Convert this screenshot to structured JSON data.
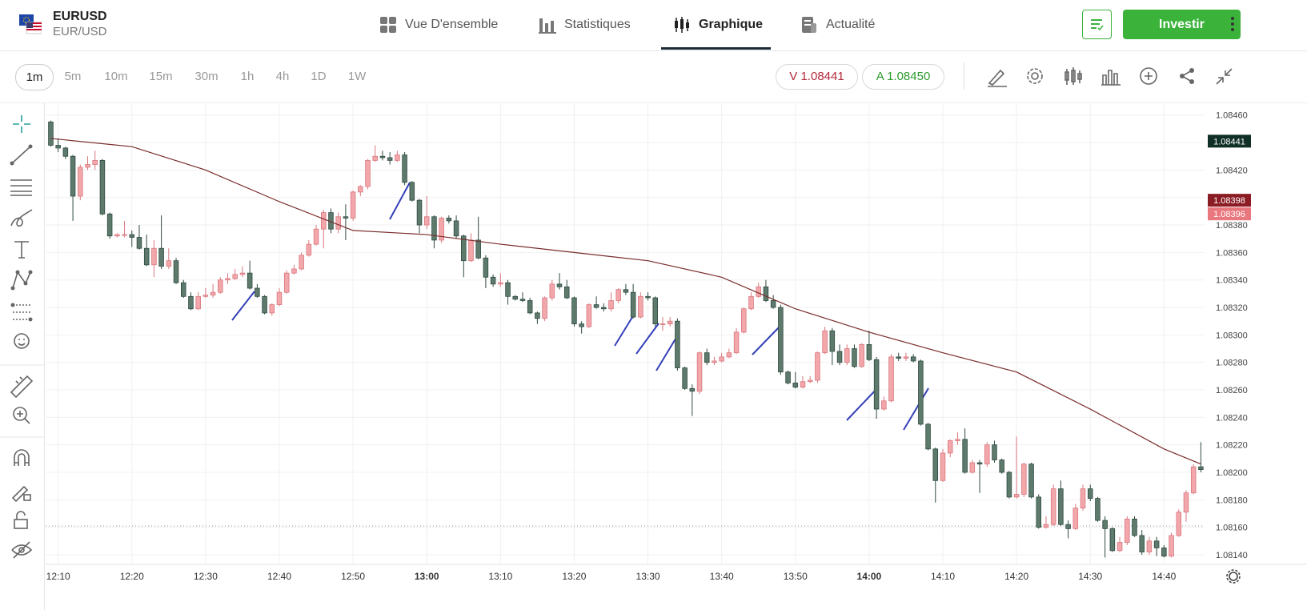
{
  "header": {
    "symbol": "EURUSD",
    "pair": "EUR/USD",
    "tabs": [
      "Vue D'ensemble",
      "Statistiques",
      "Graphique",
      "Actualité"
    ],
    "invest": "Investir"
  },
  "toolbar": {
    "timeframes": [
      "1m",
      "5m",
      "10m",
      "15m",
      "30m",
      "1h",
      "4h",
      "1D",
      "1W"
    ],
    "quotes": [
      {
        "side": "V",
        "price": "1.08441"
      },
      {
        "side": "A",
        "price": "1.08450"
      }
    ]
  },
  "chart_data": {
    "type": "candlestick",
    "x": [
      729,
      730,
      731,
      732,
      733,
      734,
      735,
      736,
      737,
      738,
      739,
      740,
      741,
      742,
      743,
      744,
      745,
      746,
      747,
      748,
      749,
      750,
      751,
      752,
      753,
      754,
      755,
      756,
      757,
      758,
      759,
      760,
      761,
      762,
      763,
      764,
      765,
      766,
      767,
      768,
      769,
      770,
      771,
      772,
      773,
      774,
      775,
      776,
      777,
      778,
      779,
      780,
      781,
      782,
      783,
      784,
      785,
      786,
      787,
      788,
      789,
      790,
      791,
      792,
      793,
      794,
      795,
      796,
      797,
      798,
      799,
      800,
      801,
      802,
      803,
      804,
      805,
      806,
      807,
      808,
      809,
      810,
      811,
      812,
      813,
      814,
      815,
      816,
      817,
      818,
      819,
      820,
      821,
      822,
      823,
      824,
      825,
      826,
      827,
      828,
      829,
      830,
      831,
      832,
      833,
      834,
      835,
      836,
      837,
      838,
      839,
      840,
      841,
      842,
      843,
      844,
      845,
      846,
      847,
      848,
      849,
      850,
      851,
      852,
      853,
      854,
      855,
      856,
      857,
      858,
      859,
      860,
      861,
      862,
      863,
      864,
      865,
      866,
      867,
      868,
      869,
      870,
      871,
      872,
      873,
      874,
      875,
      876,
      877,
      878,
      879,
      880,
      881,
      882,
      883,
      884,
      885
    ],
    "open": [
      1.08455,
      1.08438,
      1.08436,
      1.0843,
      1.08401,
      1.08422,
      1.08424,
      1.08427,
      1.08388,
      1.08372,
      1.08373,
      1.08373,
      1.08371,
      1.08363,
      1.08351,
      1.08363,
      1.0835,
      1.08354,
      1.08338,
      1.08328,
      1.08319,
      1.08328,
      1.08329,
      1.08331,
      1.0834,
      1.08341,
      1.08344,
      1.08345,
      1.08334,
      1.08328,
      1.08316,
      1.08322,
      1.08331,
      1.08345,
      1.08348,
      1.08358,
      1.08366,
      1.08377,
      1.08389,
      1.08377,
      1.08386,
      1.08385,
      1.08404,
      1.08408,
      1.08427,
      1.0843,
      1.08429,
      1.08427,
      1.08431,
      1.08411,
      1.08398,
      1.0838,
      1.08386,
      1.08369,
      1.08385,
      1.08383,
      1.08372,
      1.08354,
      1.08369,
      1.08356,
      1.08342,
      1.08337,
      1.08338,
      1.08328,
      1.08326,
      1.08325,
      1.08316,
      1.08312,
      1.08327,
      1.08337,
      1.08335,
      1.08327,
      1.08308,
      1.08306,
      1.08322,
      1.0832,
      1.08319,
      1.08325,
      1.08333,
      1.08331,
      1.08313,
      1.08328,
      1.08327,
      1.08308,
      1.08308,
      1.0831,
      1.08276,
      1.08261,
      1.08259,
      1.08287,
      1.0828,
      1.08281,
      1.08284,
      1.08287,
      1.08302,
      1.08319,
      1.08328,
      1.08335,
      1.08325,
      1.0832,
      1.08273,
      1.08265,
      1.08262,
      1.08266,
      1.08267,
      1.08287,
      1.08303,
      1.08288,
      1.0828,
      1.0829,
      1.08277,
      1.08293,
      1.08282,
      1.08246,
      1.08252,
      1.08284,
      1.08283,
      1.08284,
      1.08281,
      1.08235,
      1.08217,
      1.08194,
      1.08214,
      1.08223,
      1.08224,
      1.082,
      1.08207,
      1.08206,
      1.0822,
      1.08209,
      1.082,
      1.08182,
      1.08184,
      1.08206,
      1.08182,
      1.0816,
      1.08162,
      1.08188,
      1.08162,
      1.08159,
      1.08174,
      1.08188,
      1.08181,
      1.08165,
      1.08159,
      1.08143,
      1.08149,
      1.08166,
      1.08154,
      1.08142,
      1.0815,
      1.08145,
      1.08139,
      1.08154,
      1.08171,
      1.08185,
      1.08204
    ],
    "high": [
      1.08456,
      1.08443,
      1.08437,
      1.08431,
      1.08424,
      1.0843,
      1.08434,
      1.08428,
      1.08389,
      1.08374,
      1.08383,
      1.08376,
      1.0838,
      1.08373,
      1.08369,
      1.08387,
      1.08363,
      1.08356,
      1.0834,
      1.08331,
      1.08331,
      1.08334,
      1.08337,
      1.08342,
      1.08345,
      1.08348,
      1.0835,
      1.08354,
      1.08337,
      1.08329,
      1.08323,
      1.08334,
      1.08347,
      1.08351,
      1.0836,
      1.08369,
      1.0838,
      1.08391,
      1.08392,
      1.08389,
      1.08395,
      1.08405,
      1.08409,
      1.08428,
      1.08438,
      1.08434,
      1.08433,
      1.08434,
      1.08433,
      1.08412,
      1.08399,
      1.08401,
      1.08387,
      1.08386,
      1.08387,
      1.08387,
      1.08373,
      1.08374,
      1.08386,
      1.08358,
      1.08344,
      1.08345,
      1.0834,
      1.08329,
      1.08331,
      1.08327,
      1.08317,
      1.08328,
      1.0834,
      1.08345,
      1.0834,
      1.08328,
      1.0831,
      1.08323,
      1.08328,
      1.08323,
      1.08331,
      1.08334,
      1.08337,
      1.08337,
      1.08331,
      1.08331,
      1.08328,
      1.08313,
      1.08313,
      1.08312,
      1.08277,
      1.08264,
      1.08288,
      1.0829,
      1.08284,
      1.08287,
      1.0829,
      1.08305,
      1.0832,
      1.08331,
      1.08338,
      1.0834,
      1.08329,
      1.08322,
      1.08274,
      1.08273,
      1.0827,
      1.0827,
      1.08288,
      1.08306,
      1.08305,
      1.08293,
      1.08293,
      1.08293,
      1.08294,
      1.08303,
      1.08284,
      1.08255,
      1.08286,
      1.08287,
      1.08287,
      1.08286,
      1.08282,
      1.08236,
      1.08218,
      1.08217,
      1.08224,
      1.08229,
      1.08232,
      1.08209,
      1.08209,
      1.08222,
      1.08223,
      1.0821,
      1.08201,
      1.08226,
      1.08207,
      1.08207,
      1.08184,
      1.08168,
      1.08191,
      1.08194,
      1.08165,
      1.08177,
      1.08191,
      1.08191,
      1.08182,
      1.08168,
      1.0816,
      1.08153,
      1.08168,
      1.08168,
      1.08158,
      1.08153,
      1.08153,
      1.08147,
      1.08156,
      1.08173,
      1.08187,
      1.08206,
      1.08222
    ],
    "low": [
      1.08437,
      1.08433,
      1.08428,
      1.08383,
      1.08398,
      1.0842,
      1.0842,
      1.08387,
      1.0837,
      1.08371,
      1.08371,
      1.08364,
      1.08362,
      1.0835,
      1.08342,
      1.08348,
      1.08348,
      1.08337,
      1.08327,
      1.08318,
      1.08318,
      1.08327,
      1.08327,
      1.0833,
      1.08337,
      1.0834,
      1.08342,
      1.08333,
      1.08327,
      1.08315,
      1.08314,
      1.08321,
      1.0833,
      1.08344,
      1.08347,
      1.08357,
      1.08365,
      1.08363,
      1.08374,
      1.08374,
      1.08369,
      1.08383,
      1.08401,
      1.08406,
      1.08426,
      1.08427,
      1.08424,
      1.08426,
      1.08409,
      1.08397,
      1.08374,
      1.08377,
      1.08363,
      1.08367,
      1.08381,
      1.0837,
      1.08342,
      1.08353,
      1.08355,
      1.08334,
      1.08335,
      1.08335,
      1.08322,
      1.08325,
      1.08324,
      1.08315,
      1.08308,
      1.0831,
      1.08325,
      1.08333,
      1.08326,
      1.08306,
      1.08301,
      1.08305,
      1.08319,
      1.08317,
      1.08317,
      1.08323,
      1.08329,
      1.08312,
      1.08312,
      1.08325,
      1.08306,
      1.08303,
      1.08306,
      1.08274,
      1.0826,
      1.08241,
      1.08257,
      1.08278,
      1.08278,
      1.0828,
      1.08283,
      1.08286,
      1.08301,
      1.08318,
      1.08327,
      1.08324,
      1.08319,
      1.08271,
      1.08264,
      1.08261,
      1.08261,
      1.08265,
      1.08265,
      1.08286,
      1.08278,
      1.08278,
      1.08278,
      1.08276,
      1.08276,
      1.08281,
      1.08239,
      1.08245,
      1.08251,
      1.08281,
      1.08281,
      1.0828,
      1.08234,
      1.08216,
      1.08178,
      1.08193,
      1.08211,
      1.0822,
      1.08199,
      1.08199,
      1.08185,
      1.08204,
      1.08207,
      1.08199,
      1.08181,
      1.08181,
      1.08182,
      1.08181,
      1.08159,
      1.08159,
      1.08161,
      1.08161,
      1.08152,
      1.08158,
      1.08172,
      1.08179,
      1.08164,
      1.08138,
      1.08142,
      1.08142,
      1.08147,
      1.08153,
      1.0814,
      1.0814,
      1.08139,
      1.08138,
      1.08138,
      1.08153,
      1.08164,
      1.08184,
      1.082
    ],
    "close": [
      1.08438,
      1.08436,
      1.0843,
      1.08401,
      1.08422,
      1.08424,
      1.08427,
      1.08388,
      1.08372,
      1.08373,
      1.08373,
      1.08371,
      1.08363,
      1.08351,
      1.08363,
      1.0835,
      1.08354,
      1.08338,
      1.08328,
      1.08319,
      1.08328,
      1.08329,
      1.08331,
      1.0834,
      1.08341,
      1.08344,
      1.08345,
      1.08334,
      1.08328,
      1.08316,
      1.08322,
      1.08331,
      1.08345,
      1.08348,
      1.08358,
      1.08366,
      1.08377,
      1.08389,
      1.08377,
      1.08386,
      1.08385,
      1.08404,
      1.08408,
      1.08427,
      1.0843,
      1.08429,
      1.08427,
      1.08431,
      1.08411,
      1.08398,
      1.0838,
      1.08386,
      1.08369,
      1.08385,
      1.08383,
      1.08372,
      1.08354,
      1.08369,
      1.08356,
      1.08342,
      1.08337,
      1.08338,
      1.08328,
      1.08326,
      1.08325,
      1.08316,
      1.08312,
      1.08327,
      1.08337,
      1.08335,
      1.08327,
      1.08308,
      1.08306,
      1.08322,
      1.0832,
      1.08319,
      1.08325,
      1.08333,
      1.08331,
      1.08313,
      1.08328,
      1.08327,
      1.08308,
      1.08308,
      1.0831,
      1.08276,
      1.08261,
      1.08259,
      1.08287,
      1.0828,
      1.08281,
      1.08284,
      1.08287,
      1.08302,
      1.08319,
      1.08328,
      1.08335,
      1.08325,
      1.0832,
      1.08273,
      1.08265,
      1.08262,
      1.08266,
      1.08267,
      1.08287,
      1.08303,
      1.08288,
      1.0828,
      1.0829,
      1.08277,
      1.08293,
      1.08282,
      1.08246,
      1.08252,
      1.08284,
      1.08283,
      1.08284,
      1.08281,
      1.08235,
      1.08217,
      1.08194,
      1.08214,
      1.08223,
      1.08224,
      1.082,
      1.08207,
      1.08206,
      1.0822,
      1.08209,
      1.082,
      1.08182,
      1.08184,
      1.08206,
      1.08182,
      1.0816,
      1.08162,
      1.08188,
      1.08162,
      1.08159,
      1.08174,
      1.08188,
      1.08181,
      1.08165,
      1.08159,
      1.08143,
      1.08149,
      1.08166,
      1.08154,
      1.08142,
      1.0815,
      1.08145,
      1.08139,
      1.08154,
      1.08171,
      1.08185,
      1.08204,
      1.08202
    ],
    "up_color": "#f2a7ab",
    "down_color": "#5d7a6d",
    "ma": {
      "x": [
        729,
        740,
        750,
        760,
        770,
        780,
        790,
        800,
        810,
        820,
        830,
        840,
        850,
        860,
        870,
        880,
        885
      ],
      "values": [
        1.08443,
        1.08437,
        1.0842,
        1.08397,
        1.08376,
        1.08373,
        1.08366,
        1.0836,
        1.08354,
        1.08342,
        1.08319,
        1.08302,
        1.08287,
        1.08273,
        1.08246,
        1.08217,
        1.08206
      ],
      "color": "#7a2c2c"
    },
    "price_markers": [
      {
        "value": 1.08441,
        "color": "#0f2f27"
      },
      {
        "value": 1.08398,
        "color": "#8b1c24"
      },
      {
        "value": 1.08396,
        "color": "#e8777e"
      }
    ],
    "xlim": [
      728.3,
      885.5
    ],
    "xticks": [
      {
        "value": 730,
        "label": "12:10"
      },
      {
        "value": 740,
        "label": "12:20"
      },
      {
        "value": 750,
        "label": "12:30"
      },
      {
        "value": 760,
        "label": "12:40"
      },
      {
        "value": 770,
        "label": "12:50"
      },
      {
        "value": 780,
        "label": "13:00"
      },
      {
        "value": 790,
        "label": "13:10"
      },
      {
        "value": 800,
        "label": "13:20"
      },
      {
        "value": 810,
        "label": "13:30"
      },
      {
        "value": 820,
        "label": "13:40"
      },
      {
        "value": 830,
        "label": "13:50"
      },
      {
        "value": 840,
        "label": "14:00"
      },
      {
        "value": 850,
        "label": "14:10"
      },
      {
        "value": 860,
        "label": "14:20"
      },
      {
        "value": 870,
        "label": "14:30"
      },
      {
        "value": 880,
        "label": "14:40"
      }
    ],
    "ylim": [
      1.08133,
      1.08468
    ],
    "yticks": [
      {
        "value": 1.0846,
        "label": "1.08460"
      },
      {
        "value": 1.0844,
        "label": "1.08440"
      },
      {
        "value": 1.0842,
        "label": "1.08420"
      },
      {
        "value": 1.084,
        "label": "1.08400"
      },
      {
        "value": 1.0838,
        "label": "1.08380"
      },
      {
        "value": 1.0836,
        "label": "1.08360"
      },
      {
        "value": 1.0834,
        "label": "1.08340"
      },
      {
        "value": 1.0832,
        "label": "1.08320"
      },
      {
        "value": 1.083,
        "label": "1.08300"
      },
      {
        "value": 1.0828,
        "label": "1.08280"
      },
      {
        "value": 1.0826,
        "label": "1.08260"
      },
      {
        "value": 1.0824,
        "label": "1.08240"
      },
      {
        "value": 1.0822,
        "label": "1.08220"
      },
      {
        "value": 1.082,
        "label": "1.08200"
      },
      {
        "value": 1.0818,
        "label": "1.08180"
      },
      {
        "value": 1.0816,
        "label": "1.08160"
      },
      {
        "value": 1.0814,
        "label": "1.08140"
      }
    ],
    "grid": true
  }
}
